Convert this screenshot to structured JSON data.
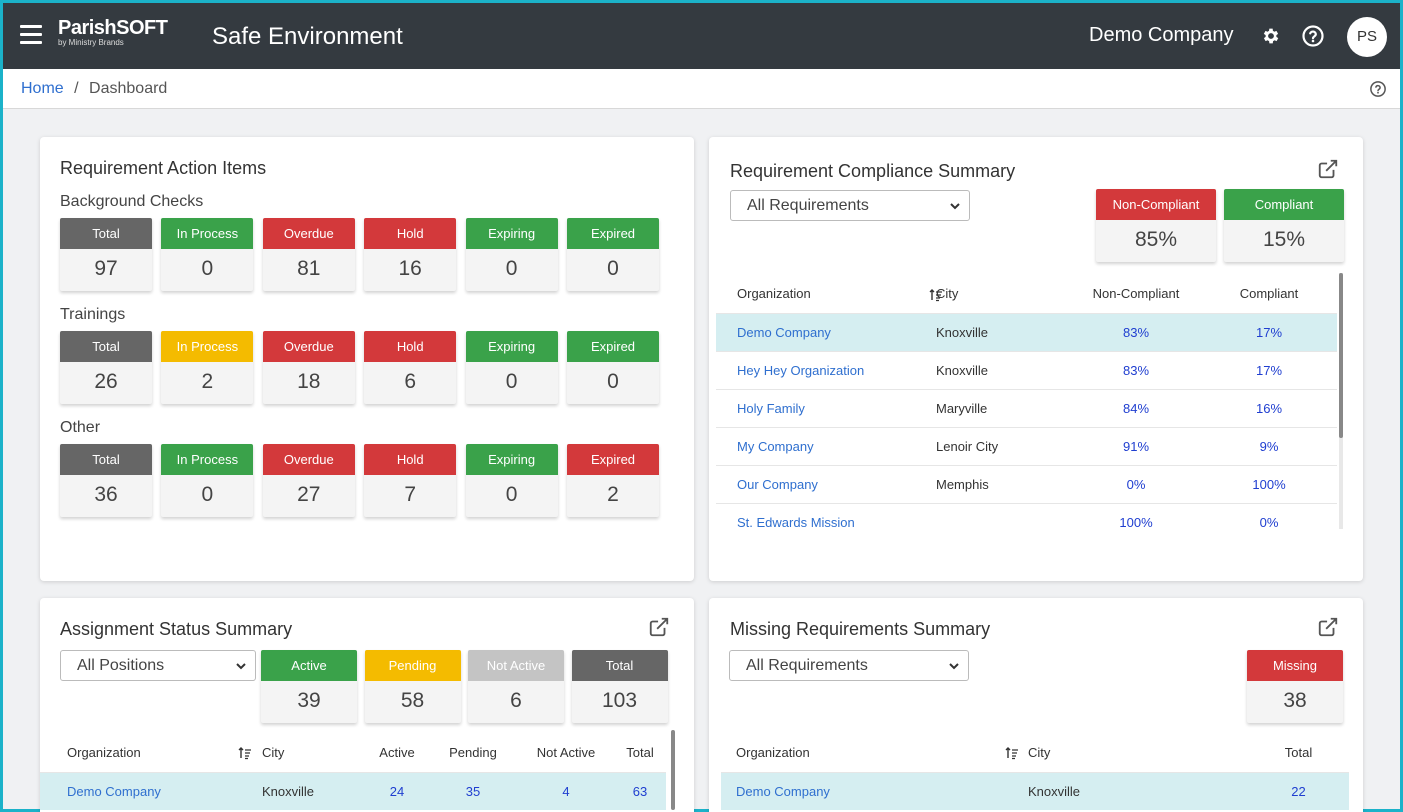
{
  "header": {
    "logo_main": "ParishSOFT",
    "logo_sub": "by Ministry Brands",
    "app_title": "Safe Environment",
    "company": "Demo Company",
    "avatar_initials": "PS"
  },
  "breadcrumb": {
    "home": "Home",
    "separator": "/",
    "current": "Dashboard"
  },
  "action_items": {
    "title": "Requirement Action Items",
    "groups": [
      {
        "label": "Background Checks",
        "stats": [
          {
            "label": "Total",
            "value": "97",
            "color": "#666666"
          },
          {
            "label": "In Process",
            "value": "0",
            "color": "#3aa24a"
          },
          {
            "label": "Overdue",
            "value": "81",
            "color": "#d3393b"
          },
          {
            "label": "Hold",
            "value": "16",
            "color": "#d3393b"
          },
          {
            "label": "Expiring",
            "value": "0",
            "color": "#3aa24a"
          },
          {
            "label": "Expired",
            "value": "0",
            "color": "#3aa24a"
          }
        ]
      },
      {
        "label": "Trainings",
        "stats": [
          {
            "label": "Total",
            "value": "26",
            "color": "#666666"
          },
          {
            "label": "In Process",
            "value": "2",
            "color": "#f4bb00"
          },
          {
            "label": "Overdue",
            "value": "18",
            "color": "#d3393b"
          },
          {
            "label": "Hold",
            "value": "6",
            "color": "#d3393b"
          },
          {
            "label": "Expiring",
            "value": "0",
            "color": "#3aa24a"
          },
          {
            "label": "Expired",
            "value": "0",
            "color": "#3aa24a"
          }
        ]
      },
      {
        "label": "Other",
        "stats": [
          {
            "label": "Total",
            "value": "36",
            "color": "#666666"
          },
          {
            "label": "In Process",
            "value": "0",
            "color": "#3aa24a"
          },
          {
            "label": "Overdue",
            "value": "27",
            "color": "#d3393b"
          },
          {
            "label": "Hold",
            "value": "7",
            "color": "#d3393b"
          },
          {
            "label": "Expiring",
            "value": "0",
            "color": "#3aa24a"
          },
          {
            "label": "Expired",
            "value": "2",
            "color": "#d3393b"
          }
        ]
      }
    ]
  },
  "compliance": {
    "title": "Requirement Compliance Summary",
    "filter": "All Requirements",
    "non_compliant_label": "Non-Compliant",
    "non_compliant_value": "85%",
    "compliant_label": "Compliant",
    "compliant_value": "15%",
    "columns": [
      "Organization",
      "City",
      "Non-Compliant",
      "Compliant"
    ],
    "rows": [
      {
        "org": "Demo Company",
        "city": "Knoxville",
        "nc": "83%",
        "c": "17%"
      },
      {
        "org": "Hey Hey Organization",
        "city": "Knoxville",
        "nc": "83%",
        "c": "17%"
      },
      {
        "org": "Holy Family",
        "city": "Maryville",
        "nc": "84%",
        "c": "16%"
      },
      {
        "org": "My Company",
        "city": "Lenoir City",
        "nc": "91%",
        "c": "9%"
      },
      {
        "org": "Our Company",
        "city": "Memphis",
        "nc": "0%",
        "c": "100%"
      },
      {
        "org": "St. Edwards Mission",
        "city": "",
        "nc": "100%",
        "c": "0%"
      }
    ]
  },
  "assignment": {
    "title": "Assignment Status Summary",
    "filter": "All Positions",
    "stats": [
      {
        "label": "Active",
        "value": "39",
        "color": "#3aa24a"
      },
      {
        "label": "Pending",
        "value": "58",
        "color": "#f4bb00"
      },
      {
        "label": "Not Active",
        "value": "6",
        "color": "#c4c4c4"
      },
      {
        "label": "Total",
        "value": "103",
        "color": "#666666"
      }
    ],
    "columns": [
      "Organization",
      "City",
      "Active",
      "Pending",
      "Not Active",
      "Total"
    ],
    "rows": [
      {
        "org": "Demo Company",
        "city": "Knoxville",
        "active": "24",
        "pending": "35",
        "not_active": "4",
        "total": "63"
      }
    ]
  },
  "missing": {
    "title": "Missing Requirements Summary",
    "filter": "All Requirements",
    "stat_label": "Missing",
    "stat_value": "38",
    "columns": [
      "Organization",
      "City",
      "Total"
    ],
    "rows": [
      {
        "org": "Demo Company",
        "city": "Knoxville",
        "total": "22"
      }
    ]
  }
}
